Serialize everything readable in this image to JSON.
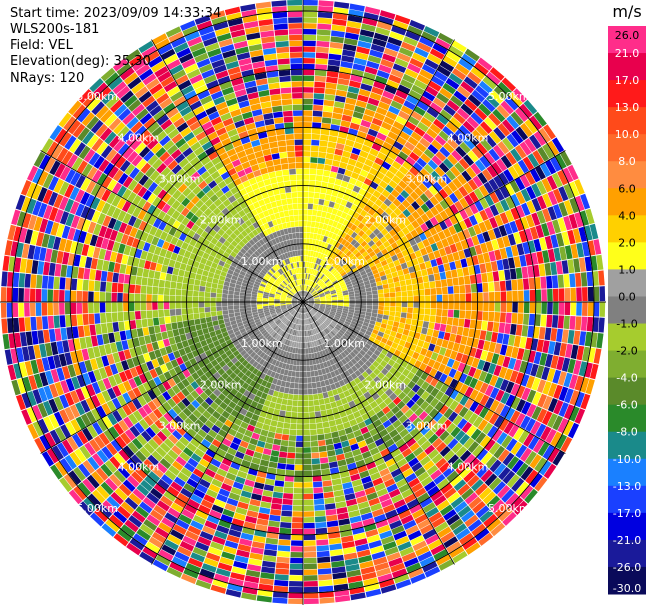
{
  "header": {
    "start_time": "Start time: 2023/09/09 14:33:34",
    "site": "WLS200s-181",
    "field": "Field: VEL",
    "elevation": "Elevation(deg): 35.30",
    "nrays": "NRays: 120"
  },
  "chart_data": {
    "type": "heatmap",
    "projection": "polar-ppi",
    "field": "VEL",
    "n_rays": 120,
    "range_rings_km": [
      1.0,
      2.0,
      3.0,
      4.0,
      5.0
    ],
    "ring_labels": [
      "1.00km",
      "2.00km",
      "3.00km",
      "4.00km",
      "5.00km"
    ],
    "max_range_km": 5.2,
    "spokes_deg": [
      0,
      30,
      60,
      90,
      120,
      150,
      180,
      210,
      240,
      270,
      300,
      330
    ],
    "colorbar": {
      "unit": "m/s",
      "ticks": [
        "26.0",
        "21.0",
        "17.0",
        "13.0",
        "10.0",
        "8.0",
        "6.0",
        "4.0",
        "2.0",
        "1.0",
        "0.0",
        "-1.0",
        "-2.0",
        "-4.0",
        "-6.0",
        "-8.0",
        "-10.0",
        "-13.0",
        "-17.0",
        "-21.0",
        "-26.0",
        "-30.0"
      ],
      "colors": [
        "#ff2d8a",
        "#e8004d",
        "#ff1a1a",
        "#ff4a1a",
        "#ff6a2a",
        "#ff8c40",
        "#ffa000",
        "#ffd000",
        "#ffff1a",
        "#a0a0a0",
        "#808080",
        "#a6cc2e",
        "#7fae30",
        "#5a8a2a",
        "#2a8a2a",
        "#1a8a8a",
        "#1a80ff",
        "#1a40ff",
        "#0000e0",
        "#1a1a9a",
        "#0a0a5a"
      ]
    },
    "velocity_regions": [
      {
        "region": "center (near zero)",
        "values_ms": [
          -1.0,
          1.0
        ]
      },
      {
        "region": "north / north-east",
        "values_ms": [
          2.0,
          8.0
        ]
      },
      {
        "region": "west",
        "values_ms": [
          -2.0,
          -4.0
        ]
      },
      {
        "region": "south-west",
        "values_ms": [
          -4.0,
          -6.0
        ]
      },
      {
        "region": "outer ranges (noise)",
        "values_ms": [
          -30.0,
          26.0
        ]
      }
    ]
  }
}
